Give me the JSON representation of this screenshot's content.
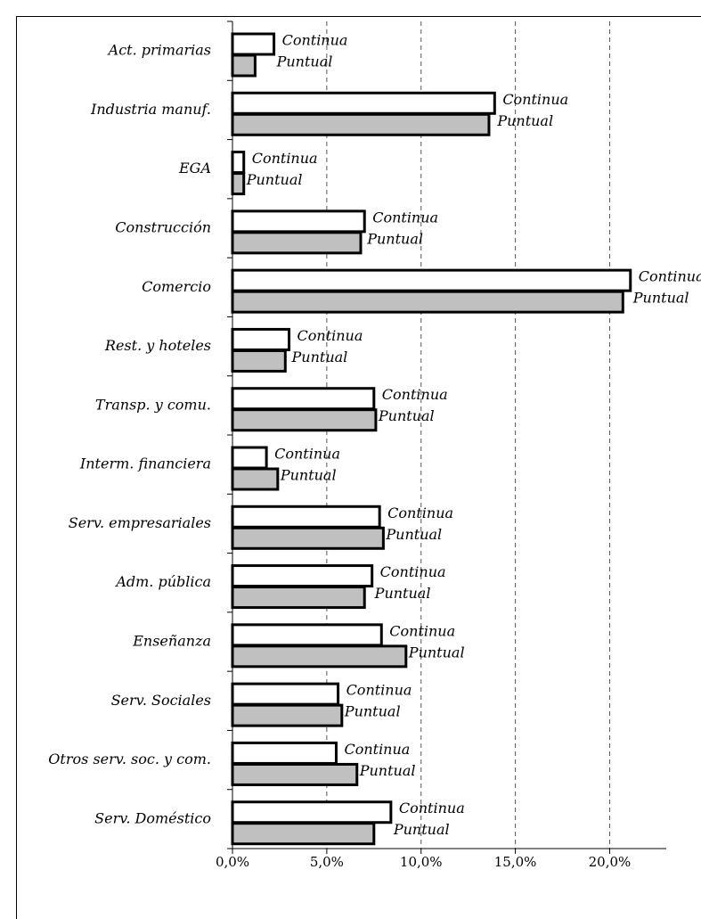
{
  "chart_data": {
    "type": "bar",
    "orientation": "horizontal",
    "categories": [
      "Act. primarias",
      "Industria manuf.",
      "EGA",
      "Construcción",
      "Comercio",
      "Rest. y hoteles",
      "Transp. y comu.",
      "Interm. financiera",
      "Serv. empresariales",
      "Adm. pública",
      "Enseñanza",
      "Serv. Sociales",
      "Otros serv. soc. y com.",
      "Serv. Doméstico"
    ],
    "series": [
      {
        "name": "Continua",
        "color": "#ffffff",
        "values": [
          2.2,
          13.9,
          0.6,
          7.0,
          21.1,
          3.0,
          7.5,
          1.8,
          7.8,
          7.4,
          7.9,
          5.6,
          5.5,
          8.4
        ]
      },
      {
        "name": "Puntual",
        "color": "#c0c0c0",
        "values": [
          1.2,
          13.6,
          0.6,
          6.8,
          20.7,
          2.8,
          7.6,
          2.4,
          8.0,
          7.0,
          9.2,
          5.8,
          6.6,
          7.5
        ]
      }
    ],
    "xlim": [
      0,
      23
    ],
    "xticks": [
      {
        "value": 0,
        "label": "0,0%"
      },
      {
        "value": 5,
        "label": "5,0%"
      },
      {
        "value": 10,
        "label": "10,0%"
      },
      {
        "value": 15,
        "label": "15,0%"
      },
      {
        "value": 20,
        "label": "20,0%"
      }
    ],
    "grid": true
  }
}
